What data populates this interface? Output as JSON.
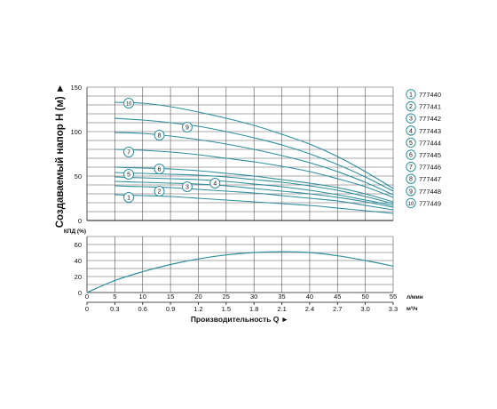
{
  "colors": {
    "curve": "#2f8f9c",
    "grid": "#555555",
    "axis": "#111111",
    "label_fill": "#ffffff"
  },
  "chart_data": [
    {
      "type": "line",
      "ylabel": "Создаваемый напор Н (м) ►",
      "ylim": [
        0,
        150
      ],
      "yticks": [
        0,
        50,
        100,
        150
      ],
      "xlim": [
        0,
        55
      ],
      "grid": true,
      "legend": "right",
      "series": [
        {
          "name": "777440",
          "label": "1",
          "x": [
            5,
            10,
            15,
            20,
            25,
            30,
            35,
            40,
            45,
            50,
            55
          ],
          "y": [
            29,
            28,
            27,
            25,
            23,
            21,
            19,
            17,
            14,
            11,
            8
          ]
        },
        {
          "name": "777441",
          "label": "2",
          "x": [
            5,
            10,
            15,
            20,
            25,
            30,
            35,
            40,
            45,
            50,
            55
          ],
          "y": [
            39,
            38,
            37,
            35,
            33,
            31,
            28,
            25,
            22,
            17,
            12
          ]
        },
        {
          "name": "777442",
          "label": "3",
          "x": [
            5,
            10,
            15,
            20,
            25,
            30,
            35,
            40,
            45,
            50,
            55
          ],
          "y": [
            44,
            43,
            42,
            41,
            39,
            36,
            33,
            30,
            26,
            21,
            15
          ]
        },
        {
          "name": "777443",
          "label": "4",
          "x": [
            5,
            10,
            15,
            20,
            25,
            30,
            35,
            40,
            45,
            50,
            55
          ],
          "y": [
            49,
            48,
            47,
            46,
            44,
            41,
            38,
            34,
            29,
            23,
            17
          ]
        },
        {
          "name": "777444",
          "label": "5",
          "x": [
            5,
            10,
            15,
            20,
            25,
            30,
            35,
            40,
            45,
            50,
            55
          ],
          "y": [
            54,
            53,
            52,
            51,
            49,
            46,
            43,
            39,
            34,
            27,
            19
          ]
        },
        {
          "name": "777445",
          "label": "6",
          "x": [
            5,
            10,
            15,
            20,
            25,
            30,
            35,
            40,
            45,
            50,
            55
          ],
          "y": [
            60,
            59,
            58,
            56,
            53,
            50,
            46,
            42,
            37,
            30,
            21
          ]
        },
        {
          "name": "777446",
          "label": "7",
          "x": [
            5,
            10,
            15,
            20,
            25,
            30,
            35,
            40,
            45,
            50,
            55
          ],
          "y": [
            80,
            79,
            77,
            74,
            70,
            66,
            61,
            55,
            47,
            38,
            26
          ]
        },
        {
          "name": "777447",
          "label": "8",
          "x": [
            5,
            10,
            15,
            20,
            25,
            30,
            35,
            40,
            45,
            50,
            55
          ],
          "y": [
            99,
            98,
            95,
            91,
            86,
            80,
            73,
            65,
            55,
            43,
            29
          ]
        },
        {
          "name": "777448",
          "label": "9",
          "x": [
            5,
            10,
            15,
            20,
            25,
            30,
            35,
            40,
            45,
            50,
            55
          ],
          "y": [
            115,
            113,
            110,
            106,
            100,
            93,
            85,
            75,
            63,
            49,
            33
          ]
        },
        {
          "name": "777449",
          "label": "10",
          "x": [
            5,
            10,
            15,
            20,
            25,
            30,
            35,
            40,
            45,
            50,
            55
          ],
          "y": [
            133,
            132,
            128,
            122,
            115,
            107,
            97,
            86,
            72,
            55,
            36
          ]
        }
      ],
      "markers": [
        {
          "series": "1",
          "x": 7.5,
          "y": 26
        },
        {
          "series": "2",
          "x": 13,
          "y": 33
        },
        {
          "series": "3",
          "x": 18,
          "y": 38
        },
        {
          "series": "4",
          "x": 23,
          "y": 42
        },
        {
          "series": "5",
          "x": 7.5,
          "y": 52
        },
        {
          "series": "6",
          "x": 13,
          "y": 58
        },
        {
          "series": "7",
          "x": 7.5,
          "y": 77
        },
        {
          "series": "8",
          "x": 13,
          "y": 96
        },
        {
          "series": "9",
          "x": 18,
          "y": 105
        },
        {
          "series": "10",
          "x": 7.5,
          "y": 132
        }
      ]
    },
    {
      "type": "line",
      "ylabel": "КПД (%)",
      "ylim": [
        0,
        70
      ],
      "yticks": [
        0,
        20,
        40,
        60
      ],
      "xlim": [
        0,
        55
      ],
      "grid": true,
      "series": [
        {
          "x": [
            0,
            5,
            10,
            15,
            20,
            25,
            30,
            35,
            40,
            45,
            50,
            55
          ],
          "y": [
            0,
            15,
            26,
            35,
            42,
            47,
            50,
            51,
            50,
            46,
            40,
            33
          ]
        }
      ]
    }
  ],
  "axes": {
    "xlabel": "Производительность Q ►",
    "lpm_unit": "л/мин",
    "m3h_unit": "м³/ч",
    "lpm_ticks": [
      0,
      5,
      10,
      15,
      20,
      25,
      30,
      35,
      40,
      45,
      50,
      55
    ],
    "m3h_ticks": [
      "0",
      "0.3",
      "0.6",
      "0.9",
      "1.2",
      "1.5",
      "1.8",
      "2.1",
      "2.4",
      "2.7",
      "3.0",
      "3.3"
    ]
  },
  "legend": {
    "items": [
      {
        "num": "1",
        "model": "777440"
      },
      {
        "num": "2",
        "model": "777441"
      },
      {
        "num": "3",
        "model": "777442"
      },
      {
        "num": "4",
        "model": "777443"
      },
      {
        "num": "5",
        "model": "777444"
      },
      {
        "num": "6",
        "model": "777445"
      },
      {
        "num": "7",
        "model": "777446"
      },
      {
        "num": "8",
        "model": "777447"
      },
      {
        "num": "9",
        "model": "777448"
      },
      {
        "num": "10",
        "model": "777449"
      }
    ]
  }
}
